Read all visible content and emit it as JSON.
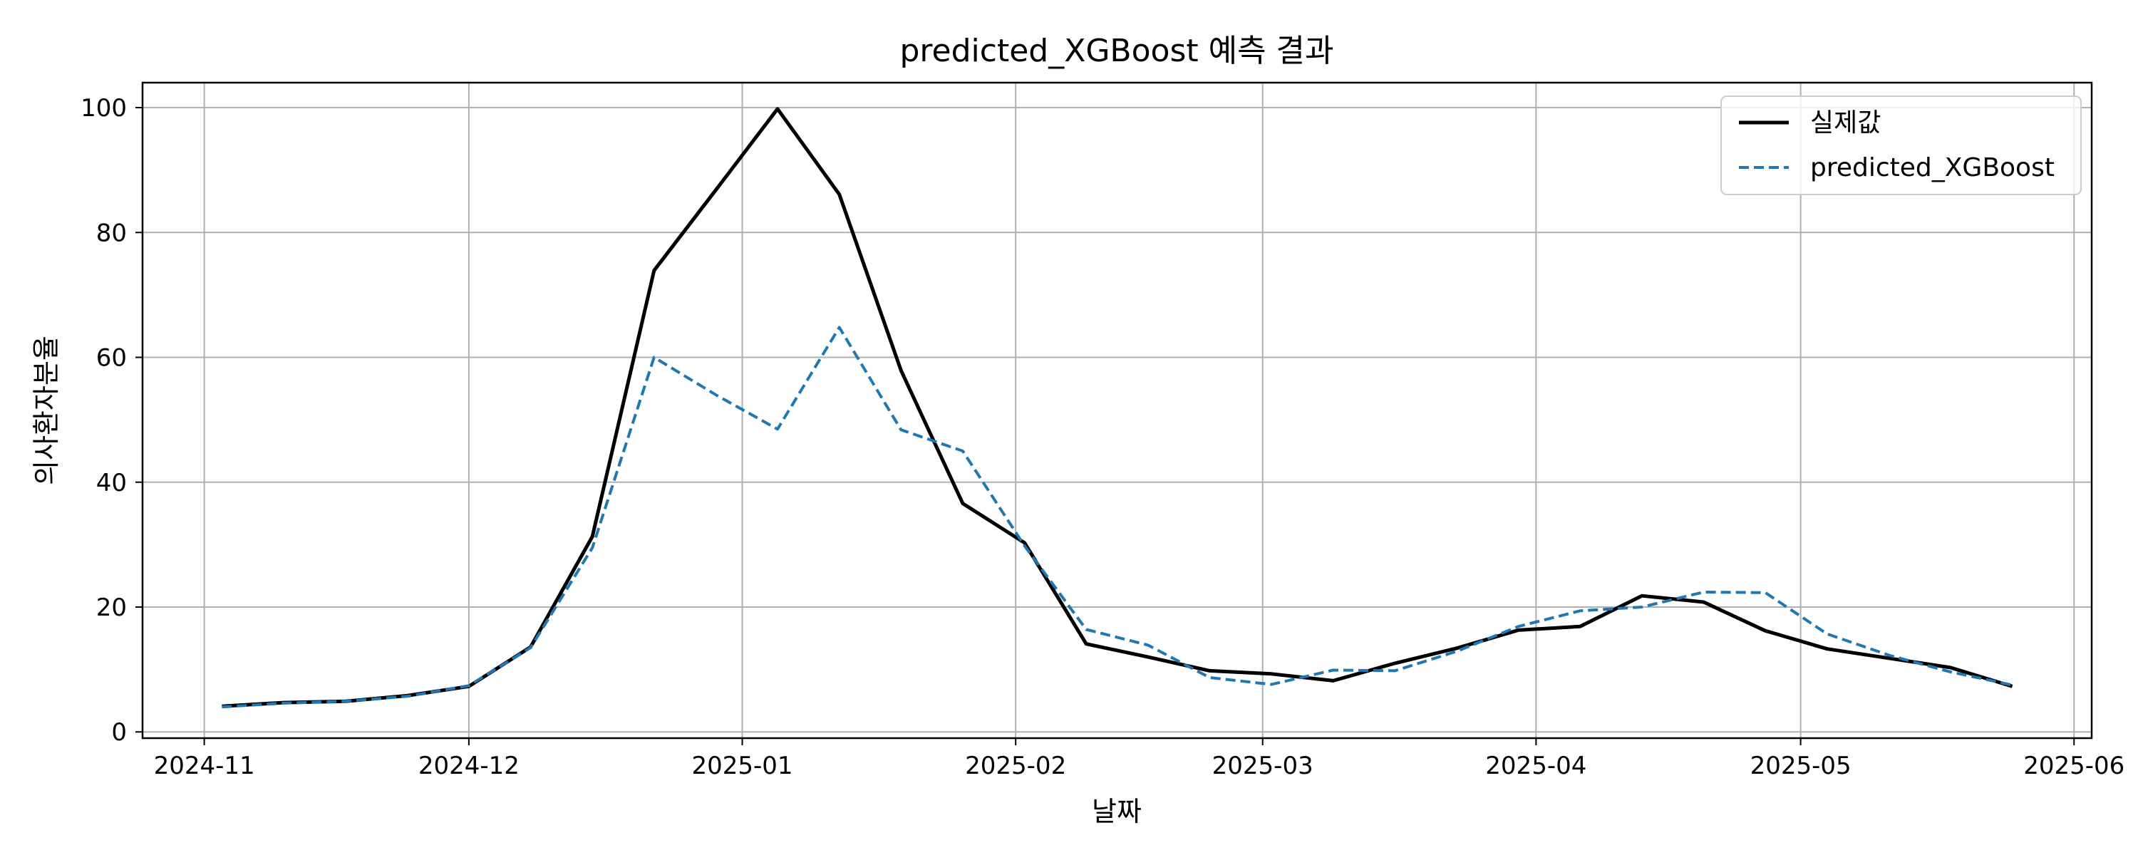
{
  "chart_data": {
    "type": "line",
    "title": "predicted_XGBoost 예측 결과",
    "xlabel": "날짜",
    "ylabel": "의사환자분율",
    "x_axis_type": "date",
    "xlim": [
      "2024-10-25",
      "2025-06-03"
    ],
    "ylim": [
      -1,
      104
    ],
    "grid": true,
    "legend_position": "top-right",
    "x_ticks": [
      "2024-11",
      "2024-12",
      "2025-01",
      "2025-02",
      "2025-03",
      "2025-04",
      "2025-05",
      "2025-06"
    ],
    "y_ticks": [
      0,
      20,
      40,
      60,
      80,
      100
    ],
    "x": [
      "2024-11-03",
      "2024-11-10",
      "2024-11-17",
      "2024-11-24",
      "2024-12-01",
      "2024-12-08",
      "2024-12-15",
      "2024-12-22",
      "2024-12-29",
      "2025-01-05",
      "2025-01-12",
      "2025-01-19",
      "2025-01-26",
      "2025-02-02",
      "2025-02-09",
      "2025-02-16",
      "2025-02-23",
      "2025-03-02",
      "2025-03-09",
      "2025-03-16",
      "2025-03-23",
      "2025-03-30",
      "2025-04-06",
      "2025-04-13",
      "2025-04-20",
      "2025-04-27",
      "2025-05-04",
      "2025-05-11",
      "2025-05-18",
      "2025-05-25"
    ],
    "series": [
      {
        "name": "실제값",
        "color": "#000000",
        "style": "solid",
        "values": [
          4.1,
          4.7,
          4.9,
          5.8,
          7.3,
          13.6,
          31.3,
          73.9,
          86.8,
          99.8,
          86.1,
          57.9,
          36.6,
          30.3,
          14.1,
          12.0,
          9.8,
          9.3,
          8.2,
          11.0,
          13.4,
          16.3,
          16.9,
          21.8,
          20.8,
          16.2,
          13.3,
          11.8,
          10.3,
          7.3
        ],
        "line_style": "solid"
      },
      {
        "name": "predicted_XGBoost",
        "color": "#1f77b4",
        "style": "dashed",
        "values": [
          4.0,
          4.6,
          4.9,
          5.7,
          7.4,
          13.5,
          29.5,
          60.0,
          54.0,
          48.5,
          64.8,
          48.4,
          45.0,
          29.8,
          16.4,
          13.9,
          8.7,
          7.6,
          9.9,
          9.8,
          12.9,
          16.9,
          19.4,
          20.0,
          22.4,
          22.3,
          15.7,
          12.3,
          9.6,
          7.5
        ],
        "line_style": "dashed"
      }
    ]
  }
}
